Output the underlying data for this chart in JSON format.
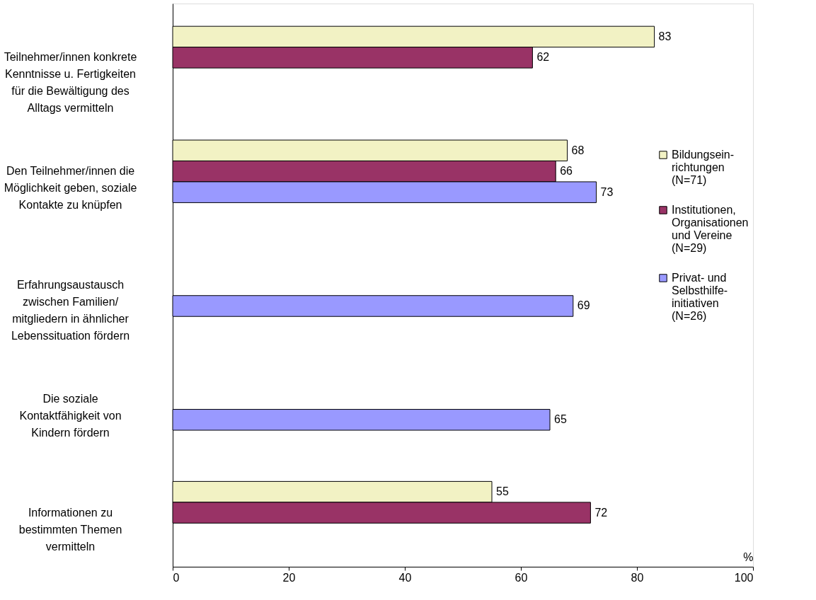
{
  "chart_data": {
    "type": "bar",
    "orientation": "horizontal",
    "categories": [
      "Teilnehmer/innen konkrete\nKenntnisse u. Fertigkeiten\nfür die Bewältigung des\nAlltags vermitteln",
      "Den Teilnehmer/innen die\nMöglichkeit geben, soziale\nKontakte zu knüpfen",
      "Erfahrungsaustausch\nzwischen Familien/\nmitgliedern in ähnlicher\nLebenssituation fördern",
      "Die soziale\nKontaktfähigkeit von\nKindern fördern",
      "Informationen zu\nbestimmten Themen\nvermitteln"
    ],
    "series": [
      {
        "name": "Bildungsein-\nrichtungen\n(N=71)",
        "color": "#f2f2c4",
        "values": [
          83,
          68,
          null,
          null,
          55
        ]
      },
      {
        "name": "Institutionen,\nOrganisationen\nund Vereine\n(N=29)",
        "color": "#993366",
        "values": [
          62,
          66,
          null,
          null,
          72
        ]
      },
      {
        "name": "Privat- und\nSelbsthilfe-\ninitiativen\n(N=26)",
        "color": "#9999ff",
        "values": [
          null,
          73,
          69,
          65,
          null
        ]
      }
    ],
    "xlabel": "%",
    "xlim": [
      0,
      100
    ],
    "xticks": [
      0,
      20,
      40,
      60,
      80,
      100
    ],
    "data_labels": true,
    "grid": false,
    "legend": "right"
  }
}
